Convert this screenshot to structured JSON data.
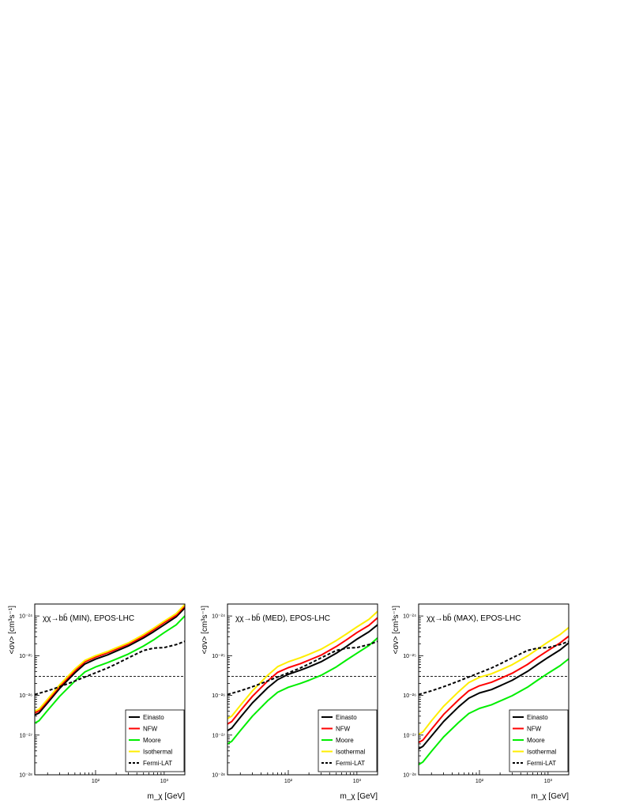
{
  "chart_data": [
    {
      "type": "line",
      "title": "χχ→bb̄ (MIN), EPOS-LHC",
      "xlabel": "m_χ [GeV]",
      "ylabel": "<σv> [cm³s⁻¹]",
      "xscale": "log",
      "yscale": "log",
      "xlim": [
        13,
        2000
      ],
      "ylim": [
        1e-28,
        2e-24
      ],
      "xtick_labels": [
        "10²",
        "10³"
      ],
      "ytick_labels": [
        "10⁻²⁸",
        "10⁻²⁷",
        "10⁻²⁶",
        "10⁻²⁵",
        "10⁻²⁴"
      ],
      "reference_line": {
        "y": 3e-26,
        "style": "dashed"
      },
      "legend_position": "bottom-right",
      "series": [
        {
          "name": "Einasto",
          "color": "#000000",
          "dashed": false,
          "x": [
            13,
            15,
            20,
            30,
            50,
            70,
            100,
            150,
            200,
            300,
            500,
            700,
            1000,
            1500,
            2000
          ],
          "y": [
            3.2e-27,
            3.6e-27,
            6.5e-27,
            1.5e-26,
            3.7e-26,
            6.2e-26,
            8.2e-26,
            1.05e-25,
            1.3e-25,
            1.75e-25,
            2.8e-25,
            4e-25,
            6e-25,
            9.5e-25,
            1.6e-24
          ]
        },
        {
          "name": "NFW",
          "color": "#ff0000",
          "dashed": false,
          "x": [
            13,
            15,
            20,
            30,
            50,
            70,
            100,
            150,
            200,
            300,
            500,
            700,
            1000,
            1500,
            2000
          ],
          "y": [
            3.6e-27,
            4.1e-27,
            7.3e-27,
            1.7e-26,
            4.2e-26,
            7e-26,
            9.2e-26,
            1.18e-25,
            1.45e-25,
            1.95e-25,
            3.1e-25,
            4.5e-25,
            6.8e-25,
            1.05e-24,
            1.8e-24
          ]
        },
        {
          "name": "Moore",
          "color": "#00ee00",
          "dashed": false,
          "x": [
            13,
            15,
            20,
            30,
            50,
            70,
            100,
            150,
            200,
            300,
            500,
            700,
            1000,
            1500,
            2000
          ],
          "y": [
            2e-27,
            2.3e-27,
            4.2e-27,
            9.5e-27,
            2.3e-26,
            3.9e-26,
            5.2e-26,
            6.7e-26,
            8.2e-26,
            1.1e-25,
            1.75e-25,
            2.5e-25,
            3.8e-25,
            6e-25,
            1e-24
          ]
        },
        {
          "name": "Isothermal",
          "color": "#ffee00",
          "dashed": false,
          "x": [
            13,
            15,
            20,
            30,
            50,
            70,
            100,
            150,
            200,
            300,
            500,
            700,
            1000,
            1500,
            2000
          ],
          "y": [
            4e-27,
            4.5e-27,
            8e-27,
            1.85e-26,
            4.6e-26,
            7.6e-26,
            1e-25,
            1.28e-25,
            1.58e-25,
            2.1e-25,
            3.4e-25,
            4.9e-25,
            7.4e-25,
            1.15e-24,
            1.95e-24
          ]
        },
        {
          "name": "Fermi-LAT",
          "color": "#000000",
          "dashed": true,
          "x": [
            13,
            20,
            30,
            50,
            70,
            100,
            150,
            200,
            300,
            500,
            700,
            1000,
            1500,
            2000
          ],
          "y": [
            1.05e-26,
            1.3e-26,
            1.65e-26,
            2.3e-26,
            2.9e-26,
            3.7e-26,
            4.9e-26,
            6.2e-26,
            8.8e-26,
            1.35e-25,
            1.55e-25,
            1.6e-25,
            1.9e-25,
            2.3e-25
          ]
        }
      ]
    },
    {
      "type": "line",
      "title": "χχ→bb̄ (MED), EPOS-LHC",
      "xlabel": "m_χ [GeV]",
      "ylabel": "<σv> [cm³s⁻¹]",
      "xscale": "log",
      "yscale": "log",
      "xlim": [
        13,
        2000
      ],
      "ylim": [
        1e-28,
        2e-24
      ],
      "xtick_labels": [
        "10²",
        "10³"
      ],
      "ytick_labels": [
        "10⁻²⁸",
        "10⁻²⁷",
        "10⁻²⁶",
        "10⁻²⁵",
        "10⁻²⁴"
      ],
      "reference_line": {
        "y": 3e-26,
        "style": "dashed"
      },
      "legend_position": "bottom-right",
      "series": [
        {
          "name": "Einasto",
          "color": "#000000",
          "dashed": false,
          "x": [
            13,
            15,
            20,
            30,
            50,
            70,
            100,
            150,
            200,
            300,
            500,
            700,
            1000,
            1500,
            2000
          ],
          "y": [
            1.3e-27,
            1.5e-27,
            2.8e-27,
            6.5e-27,
            1.55e-26,
            2.5e-26,
            3.4e-26,
            4.3e-26,
            5.2e-26,
            7e-26,
            1.15e-25,
            1.7e-25,
            2.6e-25,
            4e-25,
            6e-25
          ]
        },
        {
          "name": "NFW",
          "color": "#ff0000",
          "dashed": false,
          "x": [
            13,
            15,
            20,
            30,
            50,
            70,
            100,
            150,
            200,
            300,
            500,
            700,
            1000,
            1500,
            2000
          ],
          "y": [
            1.9e-27,
            2.2e-27,
            4.1e-27,
            9.5e-27,
            2.3e-26,
            3.8e-26,
            5e-26,
            6.3e-26,
            7.7e-26,
            1.03e-25,
            1.7e-25,
            2.5e-25,
            3.8e-25,
            5.8e-25,
            9e-25
          ]
        },
        {
          "name": "Moore",
          "color": "#00ee00",
          "dashed": false,
          "x": [
            13,
            15,
            20,
            30,
            50,
            70,
            100,
            150,
            200,
            300,
            500,
            700,
            1000,
            1500,
            2000
          ],
          "y": [
            6e-28,
            7e-28,
            1.3e-27,
            3e-27,
            7.3e-27,
            1.2e-26,
            1.6e-26,
            2e-26,
            2.4e-26,
            3.2e-26,
            5.2e-26,
            7.7e-26,
            1.15e-25,
            1.8e-25,
            2.8e-25
          ]
        },
        {
          "name": "Isothermal",
          "color": "#ffee00",
          "dashed": false,
          "x": [
            13,
            15,
            20,
            30,
            50,
            70,
            100,
            150,
            200,
            300,
            500,
            700,
            1000,
            1500,
            2000
          ],
          "y": [
            2.6e-27,
            3e-27,
            5.6e-27,
            1.3e-26,
            3.2e-26,
            5.3e-26,
            7e-26,
            8.9e-26,
            1.08e-25,
            1.45e-25,
            2.4e-25,
            3.5e-25,
            5.3e-25,
            8.2e-25,
            1.3e-24
          ]
        },
        {
          "name": "Fermi-LAT",
          "color": "#000000",
          "dashed": true,
          "x": [
            13,
            20,
            30,
            50,
            70,
            100,
            150,
            200,
            300,
            500,
            700,
            1000,
            1500,
            2000
          ],
          "y": [
            1.05e-26,
            1.3e-26,
            1.65e-26,
            2.3e-26,
            2.9e-26,
            3.7e-26,
            4.9e-26,
            6.2e-26,
            8.8e-26,
            1.35e-25,
            1.55e-25,
            1.6e-25,
            1.9e-25,
            2.3e-25
          ]
        }
      ]
    },
    {
      "type": "line",
      "title": "χχ→bb̄ (MAX), EPOS-LHC",
      "xlabel": "m_χ [GeV]",
      "ylabel": "<σv> [cm³s⁻¹]",
      "xscale": "log",
      "yscale": "log",
      "xlim": [
        13,
        2000
      ],
      "ylim": [
        1e-28,
        2e-24
      ],
      "xtick_labels": [
        "10²",
        "10³"
      ],
      "ytick_labels": [
        "10⁻²⁸",
        "10⁻²⁷",
        "10⁻²⁶",
        "10⁻²⁵",
        "10⁻²⁴"
      ],
      "reference_line": {
        "y": 3e-26,
        "style": "dashed"
      },
      "legend_position": "bottom-right",
      "series": [
        {
          "name": "Einasto",
          "color": "#000000",
          "dashed": false,
          "x": [
            13,
            15,
            20,
            30,
            50,
            70,
            100,
            150,
            200,
            300,
            500,
            700,
            1000,
            1500,
            2000
          ],
          "y": [
            4.5e-28,
            5.2e-28,
            9.5e-28,
            2.2e-27,
            5.2e-27,
            8.5e-27,
            1.15e-26,
            1.4e-26,
            1.75e-26,
            2.4e-26,
            4e-26,
            6e-26,
            9e-26,
            1.4e-25,
            2.1e-25
          ]
        },
        {
          "name": "NFW",
          "color": "#ff0000",
          "dashed": false,
          "x": [
            13,
            15,
            20,
            30,
            50,
            70,
            100,
            150,
            200,
            300,
            500,
            700,
            1000,
            1500,
            2000
          ],
          "y": [
            6.5e-28,
            7.5e-28,
            1.4e-27,
            3.3e-27,
            7.8e-27,
            1.3e-26,
            1.75e-26,
            2.15e-26,
            2.65e-26,
            3.6e-26,
            6e-26,
            9e-26,
            1.35e-25,
            2.1e-25,
            3.1e-25
          ]
        },
        {
          "name": "Moore",
          "color": "#00ee00",
          "dashed": false,
          "x": [
            13,
            15,
            20,
            30,
            50,
            70,
            100,
            150,
            200,
            300,
            500,
            700,
            1000,
            1500,
            2000
          ],
          "y": [
            1.8e-28,
            2.1e-28,
            3.9e-28,
            9e-28,
            2.1e-27,
            3.5e-27,
            4.7e-27,
            5.8e-27,
            7.2e-27,
            9.8e-27,
            1.6e-26,
            2.4e-26,
            3.6e-26,
            5.6e-26,
            8.3e-26
          ]
        },
        {
          "name": "Isothermal",
          "color": "#ffee00",
          "dashed": false,
          "x": [
            13,
            15,
            20,
            30,
            50,
            70,
            100,
            150,
            200,
            300,
            500,
            700,
            1000,
            1500,
            2000
          ],
          "y": [
            1.05e-27,
            1.2e-27,
            2.3e-27,
            5.3e-27,
            1.25e-26,
            2.1e-26,
            2.85e-26,
            3.5e-26,
            4.3e-26,
            5.9e-26,
            9.8e-26,
            1.45e-25,
            2.2e-25,
            3.4e-25,
            5.1e-25
          ]
        },
        {
          "name": "Fermi-LAT",
          "color": "#000000",
          "dashed": true,
          "x": [
            13,
            20,
            30,
            50,
            70,
            100,
            150,
            200,
            300,
            500,
            700,
            1000,
            1500,
            2000
          ],
          "y": [
            1.05e-26,
            1.3e-26,
            1.65e-26,
            2.3e-26,
            2.9e-26,
            3.7e-26,
            4.9e-26,
            6.2e-26,
            8.8e-26,
            1.35e-25,
            1.55e-25,
            1.6e-25,
            1.9e-25,
            2.3e-25
          ]
        }
      ]
    }
  ]
}
